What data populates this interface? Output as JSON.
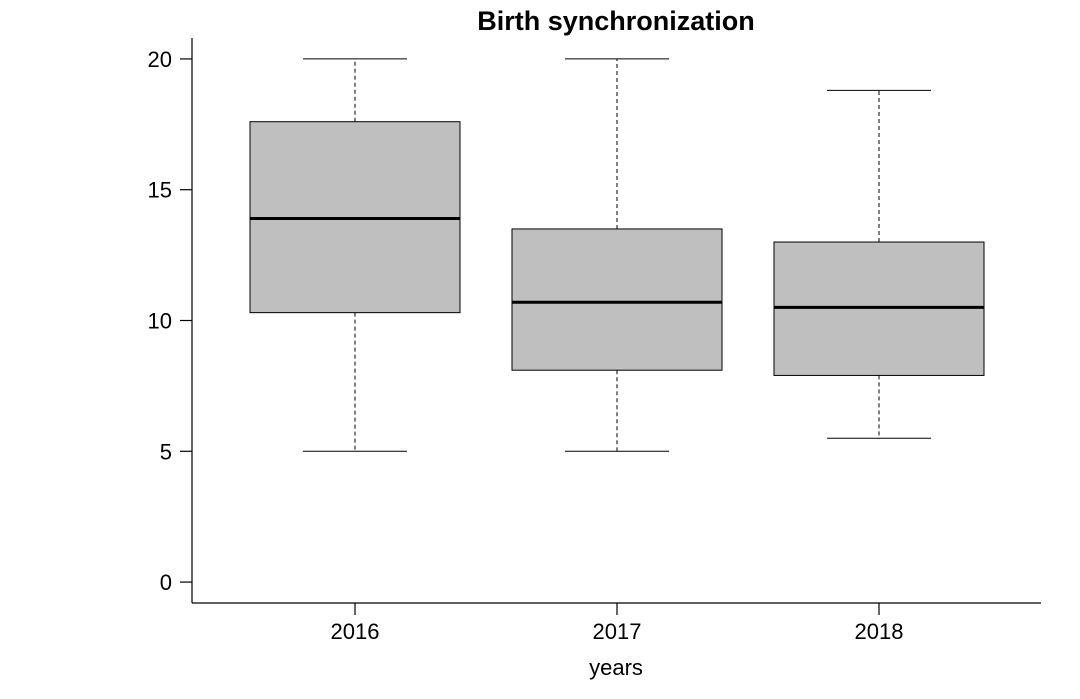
{
  "chart_data": {
    "type": "boxplot",
    "title": "Birth synchronization",
    "xlabel": "years",
    "ylabel": "",
    "categories": [
      "2016",
      "2017",
      "2018"
    ],
    "boxes": [
      {
        "category": "2016",
        "min": 5.0,
        "q1": 10.3,
        "median": 13.9,
        "q3": 17.6,
        "max": 20.0
      },
      {
        "category": "2017",
        "min": 5.0,
        "q1": 8.1,
        "median": 10.7,
        "q3": 13.5,
        "max": 20.0
      },
      {
        "category": "2018",
        "min": 5.5,
        "q1": 7.9,
        "median": 10.5,
        "q3": 13.0,
        "max": 18.8
      }
    ],
    "ylim": [
      -0.8,
      20.8
    ],
    "yticks": [
      "0",
      "5",
      "10",
      "15",
      "20"
    ],
    "box_color": "#bfbfbf",
    "grid": false,
    "legend": "none"
  }
}
